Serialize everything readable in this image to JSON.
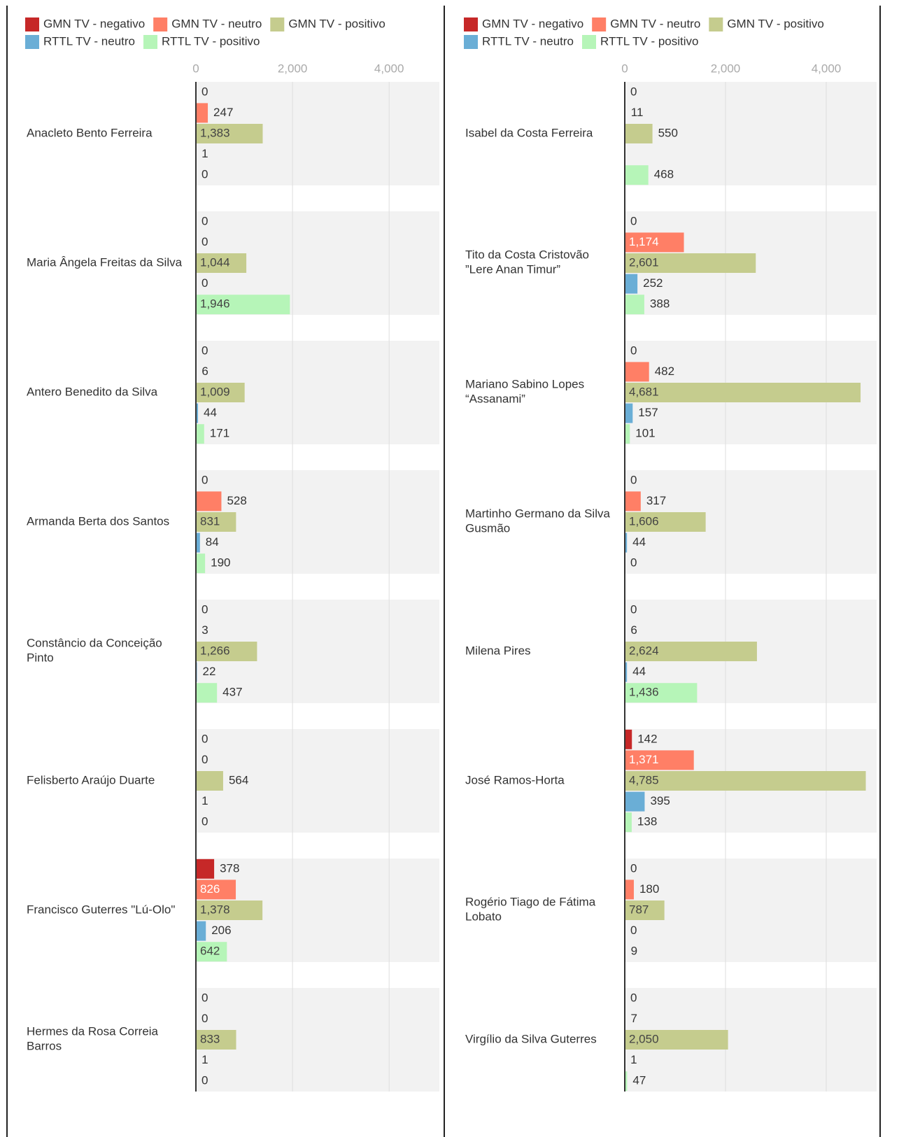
{
  "chart_data": [
    {
      "type": "bar",
      "orientation": "horizontal",
      "grid": true,
      "categories": [
        "Anacleto Bento Ferreira",
        "Maria Ângela Freitas da Silva",
        "Antero Benedito da Silva",
        "Armanda Berta dos Santos",
        "Constâncio da Conceição Pinto",
        "Felisberto Araújo Duarte",
        "Francisco Guterres \"Lú-Olo\"",
        "Hermes da Rosa Correia Barros"
      ],
      "xlim": [
        0,
        5040
      ],
      "xticks": [
        0,
        {
          "value": 2000,
          "label": "2,000"
        },
        {
          "value": 4000,
          "label": "4,000"
        }
      ],
      "series": [
        {
          "name": "GMN TV - negativo",
          "color": "#c62828",
          "values": [
            0,
            0,
            0,
            0,
            0,
            0,
            378,
            0
          ],
          "value_labels": [
            "0",
            "0",
            "0",
            "0",
            "0",
            "0",
            "378",
            "0"
          ]
        },
        {
          "name": "GMN TV - neutro",
          "color": "#ff7f66",
          "values": [
            247,
            0,
            6,
            528,
            3,
            0,
            826,
            0
          ],
          "value_labels": [
            "247",
            "0",
            "6",
            "528",
            "3",
            "0",
            "826",
            "0"
          ]
        },
        {
          "name": "GMN TV - positivo",
          "color": "#c5cc8e",
          "values": [
            1383,
            1044,
            1009,
            831,
            1266,
            564,
            1378,
            833
          ],
          "value_labels": [
            "1,383",
            "1,044",
            "1,009",
            "831",
            "1,266",
            "564",
            "1,378",
            "833"
          ]
        },
        {
          "name": "RTTL TV - neutro",
          "color": "#6aaed6",
          "values": [
            1,
            0,
            44,
            84,
            22,
            1,
            206,
            1
          ],
          "value_labels": [
            "1",
            "0",
            "44",
            "84",
            "22",
            "1",
            "206",
            "1"
          ]
        },
        {
          "name": "RTTL TV - positivo",
          "color": "#b6f5b8",
          "values": [
            0,
            1946,
            171,
            190,
            437,
            0,
            642,
            0
          ],
          "value_labels": [
            "0",
            "1,946",
            "171",
            "190",
            "437",
            "0",
            "642",
            "0"
          ]
        }
      ]
    },
    {
      "type": "bar",
      "orientation": "horizontal",
      "grid": true,
      "categories": [
        "Isabel da Costa Ferreira",
        "Tito da Costa Cristovão ”Lere Anan Timur”",
        "Mariano Sabino Lopes “Assanami”",
        "Martinho Germano da Silva Gusmão",
        "Milena Pires",
        "José Ramos-Horta",
        "Rogério Tiago de Fátima Lobato",
        "Virgílio da Silva Guterres"
      ],
      "xlim": [
        0,
        5000
      ],
      "xticks": [
        0,
        {
          "value": 2000,
          "label": "2,000"
        },
        {
          "value": 4000,
          "label": "4,000"
        }
      ],
      "series": [
        {
          "name": "GMN TV - negativo",
          "color": "#c62828",
          "values": [
            0,
            0,
            0,
            0,
            0,
            142,
            0,
            0
          ],
          "value_labels": [
            "0",
            "0",
            "0",
            "0",
            "0",
            "142",
            "0",
            "0"
          ]
        },
        {
          "name": "GMN TV - neutro",
          "color": "#ff7f66",
          "values": [
            11,
            1174,
            482,
            317,
            6,
            1371,
            180,
            7
          ],
          "value_labels": [
            "11",
            "1,174",
            "482",
            "317",
            "6",
            "1,371",
            "180",
            "7"
          ]
        },
        {
          "name": "GMN TV - positivo",
          "color": "#c5cc8e",
          "values": [
            550,
            2601,
            4681,
            1606,
            2624,
            4785,
            787,
            2050
          ],
          "value_labels": [
            "550",
            "2,601",
            "4,681",
            "1,606",
            "2,624",
            "4,785",
            "787",
            "2,050"
          ]
        },
        {
          "name": "RTTL TV - neutro",
          "color": "#6aaed6",
          "values": [
            null,
            252,
            157,
            44,
            44,
            395,
            0,
            1
          ],
          "value_labels": [
            null,
            "252",
            "157",
            "44",
            "44",
            "395",
            "0",
            "1"
          ]
        },
        {
          "name": "RTTL TV - positivo",
          "color": "#b6f5b8",
          "values": [
            468,
            388,
            101,
            0,
            1436,
            138,
            9,
            47
          ],
          "value_labels": [
            "468",
            "388",
            "101",
            "0",
            "1,436",
            "138",
            "9",
            "47"
          ]
        }
      ]
    }
  ]
}
